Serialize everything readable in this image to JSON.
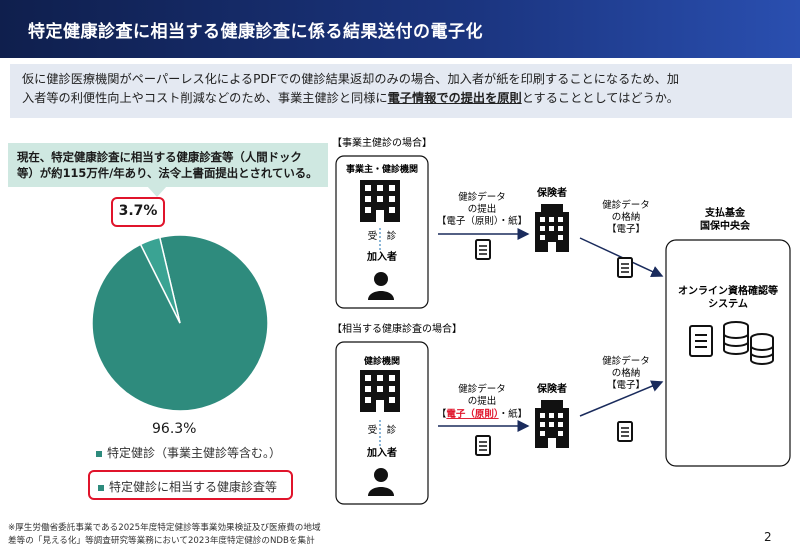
{
  "header": {
    "title": "特定健康診査に相当する健康診査に係る結果送付の電子化"
  },
  "intro": {
    "line1": "仮に健診医療機関がペーパーレス化によるPDFでの健診結果返却のみの場合、加入者が紙を印刷することになるため、加",
    "line2_pre": "入者等の利便性向上やコスト削減などのため、事業主健診と同様に",
    "line2_em": "電子情報での提出を原則",
    "line2_post": "とすることとしてはどうか。"
  },
  "callout": {
    "line1": "現在、特定健康診査に相当する健康診査等（人間ドック",
    "line2": "等）が約115万件/年あり、法令上書面提出とされている。"
  },
  "chart_data": {
    "type": "pie",
    "categories": [
      "特定健診（事業主健診等含む。）",
      "特定健診に相当する健康診査等"
    ],
    "values": [
      96.3,
      3.7
    ],
    "labels": [
      "96.3%",
      "3.7%"
    ],
    "colors": [
      "#2e8b7d",
      "#3aa393"
    ]
  },
  "legend": {
    "item1": "特定健診（事業主健診等含む。）",
    "item2": "特定健診に相当する健康診査等"
  },
  "diagram": {
    "section1": "【事業主健診の場合】",
    "section2": "【相当する健康診査の場合】",
    "employer": "事業主・健診機関",
    "clinic": "健診機関",
    "exam": "受　診",
    "member": "加入者",
    "data_submit_1": "健診データ",
    "data_submit_2": "の提出",
    "submit_mode_1": "【電子（原則）・紙】",
    "submit_pre": "【",
    "submit_em": "電子（原則）",
    "submit_post": "・紙】",
    "insurer": "保険者",
    "data_store_1": "健診データ",
    "data_store_2": "の格納",
    "store_mode": "【電子】",
    "fund_1": "支払基金",
    "fund_2": "国保中央会",
    "system_1": "オンライン資格確認等",
    "system_2": "システム"
  },
  "footnote": {
    "line1": "※厚生労働省委託事業である2025年度特定健診等事業効果検証及び医療費の地域",
    "line2": "差等の「見える化」等調査研究等業務において2023年度特定健診のNDBを集計"
  },
  "page_number": "2"
}
